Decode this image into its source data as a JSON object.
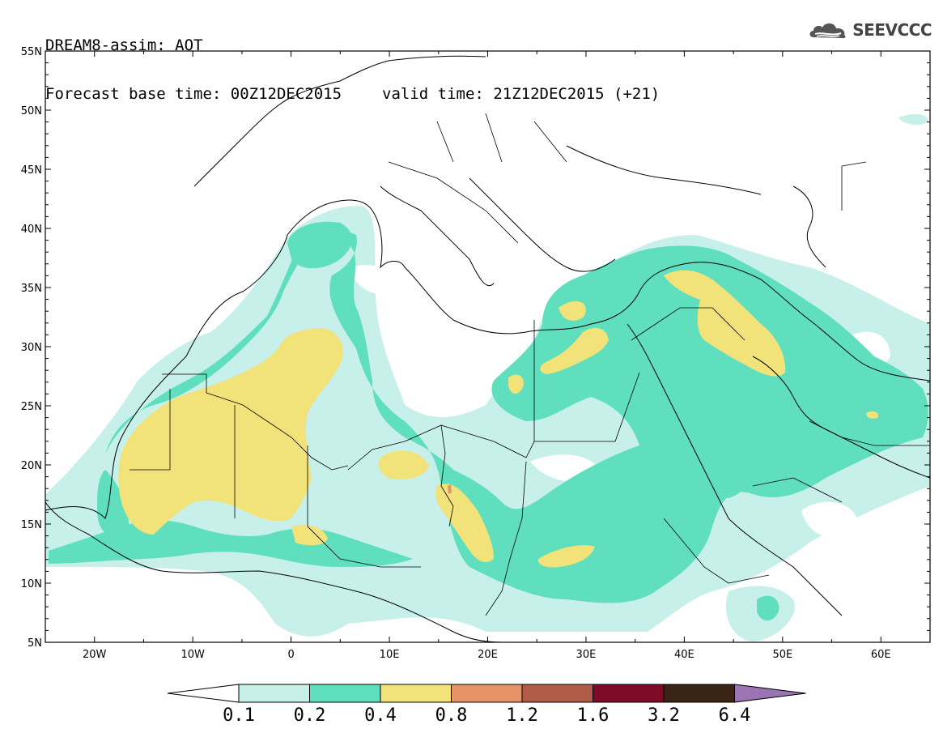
{
  "header": {
    "title": "DREAM8-assim: AOT",
    "base_time": "Forecast base time: 00Z12DEC2015",
    "valid_time": "valid time: 21Z12DEC2015 (+21)"
  },
  "logo": {
    "text": "SEEVCCC",
    "icon": "cloud-icon"
  },
  "map": {
    "variable": "AOT",
    "lon_range": [
      -25,
      65
    ],
    "lat_range": [
      5,
      55
    ],
    "lat_labels": [
      "55N",
      "50N",
      "45N",
      "40N",
      "35N",
      "30N",
      "25N",
      "20N",
      "15N",
      "10N",
      "5N"
    ],
    "lon_labels": [
      "20W",
      "10W",
      "0",
      "10E",
      "20E",
      "30E",
      "40E",
      "50E",
      "60E"
    ]
  },
  "colorbar": {
    "levels": [
      "0.1",
      "0.2",
      "0.4",
      "0.8",
      "1.2",
      "1.6",
      "3.2",
      "6.4"
    ],
    "colors": [
      "#ffffff",
      "#c8f0ea",
      "#5fdfbd",
      "#f2e27a",
      "#e6936a",
      "#b05a48",
      "#7e0a28",
      "#3a2416",
      "#9b74b4"
    ]
  }
}
